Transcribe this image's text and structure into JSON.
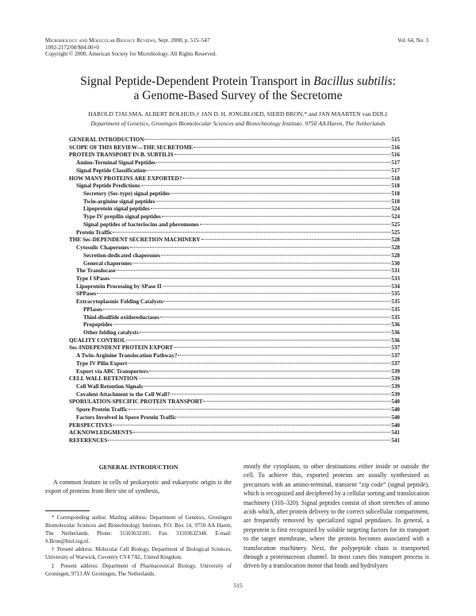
{
  "header": {
    "journal": "Microbiology and Molecular Biology Reviews",
    "citation": ", Sept. 2000, p. 515–547",
    "issn": "1092-2172/00/$04.00+0",
    "copyright": "Copyright © 2000, American Society for Microbiology. All Rights Reserved.",
    "volume": "Vol. 64, No. 3"
  },
  "article": {
    "title_part1": "Signal Peptide-Dependent Protein Transport in ",
    "title_italic": "Bacillus subtilis",
    "title_part2": ":",
    "title_line2": "a Genome-Based Survey of the Secretome",
    "authors": "HAROLD TJALSMA, ALBERT BOLHUIS,† JAN D. H. JONGBLOED, SIERD BRON,* and JAN MAARTEN van DIJL‡",
    "affiliation": "Department of Genetics, Groningen Biomolecular Sciences and Biotechnology Institute, 9750 AA Haren, The Netherlands"
  },
  "toc": [
    {
      "label": "GENERAL INTRODUCTION",
      "page": "515",
      "level": 0
    },
    {
      "label": "SCOPE OF THIS REVIEW—THE SECRETOME",
      "page": "516",
      "level": 0
    },
    {
      "label": "PROTEIN TRANSPORT IN B. SUBTILIS",
      "page": "516",
      "level": 0
    },
    {
      "label": "Amino-Terminal Signal Peptides",
      "page": "517",
      "level": 1
    },
    {
      "label": "Signal Peptide Classification",
      "page": "517",
      "level": 1
    },
    {
      "label": "HOW MANY PROTEINS ARE EXPORTED?",
      "page": "518",
      "level": 0
    },
    {
      "label": "Signal Peptide Predictions",
      "page": "518",
      "level": 1
    },
    {
      "label": "Secretory (Sec-type) signal peptides",
      "page": "518",
      "level": 2
    },
    {
      "label": "Twin-arginine signal peptides",
      "page": "518",
      "level": 2
    },
    {
      "label": "Lipoprotein signal peptides",
      "page": "524",
      "level": 2
    },
    {
      "label": "Type IV prepilin signal peptides",
      "page": "524",
      "level": 2
    },
    {
      "label": "Signal peptides of bacteriocins and pheromones",
      "page": "525",
      "level": 2
    },
    {
      "label": "Protein Traffic",
      "page": "525",
      "level": 1
    },
    {
      "label": "THE Sec-DEPENDENT SECRETION MACHINERY",
      "page": "528",
      "level": 0
    },
    {
      "label": "Cytosolic Chaperones",
      "page": "528",
      "level": 1
    },
    {
      "label": "Secretion-dedicated chaperones",
      "page": "528",
      "level": 2
    },
    {
      "label": "General chaperones",
      "page": "530",
      "level": 2
    },
    {
      "label": "The Translocase",
      "page": "531",
      "level": 1
    },
    {
      "label": "Type I SPases",
      "page": "533",
      "level": 1
    },
    {
      "label": "Lipoprotein Processing by SPase II",
      "page": "534",
      "level": 1
    },
    {
      "label": "SPPases",
      "page": "535",
      "level": 1
    },
    {
      "label": "Extracytoplasmic Folding Catalysts",
      "page": "535",
      "level": 1
    },
    {
      "label": "PPIases",
      "page": "535",
      "level": 2
    },
    {
      "label": "Thiol-disulfide oxidoreductases",
      "page": "535",
      "level": 2
    },
    {
      "label": "Propeptides",
      "page": "536",
      "level": 2
    },
    {
      "label": "Other folding catalysts",
      "page": "536",
      "level": 2
    },
    {
      "label": "QUALITY CONTROL",
      "page": "536",
      "level": 0
    },
    {
      "label": "Sec-INDEPENDENT PROTEIN EXPORT",
      "page": "537",
      "level": 0
    },
    {
      "label": "A Twin-Arginine Translocation Pathway?",
      "page": "537",
      "level": 1
    },
    {
      "label": "Type IV Pilin Export",
      "page": "537",
      "level": 1
    },
    {
      "label": "Export via ABC Transporters",
      "page": "539",
      "level": 1
    },
    {
      "label": "CELL WALL RETENTION",
      "page": "539",
      "level": 0
    },
    {
      "label": "Cell Wall Retention Signals",
      "page": "539",
      "level": 1
    },
    {
      "label": "Covalent Attachment to the Cell Wall?",
      "page": "539",
      "level": 1
    },
    {
      "label": "SPORULATION-SPECIFIC PROTEIN TRANSPORT",
      "page": "540",
      "level": 0
    },
    {
      "label": "Spore Protein Traffic",
      "page": "540",
      "level": 1
    },
    {
      "label": "Factors Involved in Spore Protein Traffic",
      "page": "540",
      "level": 1
    },
    {
      "label": "PERSPECTIVES",
      "page": "540",
      "level": 0
    },
    {
      "label": "ACKNOWLEDGMENTS",
      "page": "541",
      "level": 0
    },
    {
      "label": "REFERENCES",
      "page": "541",
      "level": 0
    }
  ],
  "body": {
    "section_heading": "GENERAL INTRODUCTION",
    "left_paragraph": "A common feature in cells of prokaryotic and eukaryotic origin is the export of proteins from their site of synthesis,",
    "right_paragraph": "mostly the cytoplasm, to other destinations either inside or outside the cell. To achieve this, exported proteins are usually synthesized as precursors with an amino-terminal, transient “zip code” (signal peptide), which is recognized and deciphered by a cellular sorting and translocation machinery (318–320). Signal peptides consist of short stretches of amino acids which, after protein delivery to the correct subcellular compartment, are frequently removed by specialized signal peptidases. In general, a preprotein is first recognized by soluble targeting factors for its transport to the target membrane, where the protein becomes associated with a translocation machinery. Next, the polypeptide chain is transported through a proteinaceous channel. In most cases this transport process is driven by a translocation motor that binds and hydrolyzes"
  },
  "footnotes": [
    "* Corresponding author. Mailing address: Department of Genetics, Groningen Biomolecular Sciences and Biotechnology Institute, P.O. Box 14, 9750 AA Haren, The Netherlands. Phone: 31503632105. Fax: 31503632348. E-mail: S.Bron@biol.rug.nl.",
    "† Present address: Molecular Cell Biology, Department of Biological Sciences, University of Warwick, Coventry CV4 7AL, United Kingdom.",
    "‡ Present address: Department of Pharmaceutical Biology, University of Groningen, 9713 AV Groningen, The Netherlands."
  ],
  "page_number": "515"
}
